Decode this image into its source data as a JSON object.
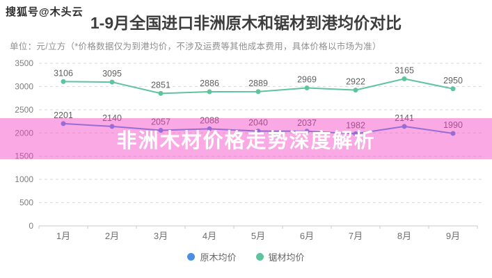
{
  "watermark": "搜狐号@木头云",
  "banner": {
    "text": "非洲木材价格走势深度解析",
    "bg_color": "#f740c4",
    "bg_opacity": 0.45,
    "text_color": "#ffffff"
  },
  "chart_data": {
    "type": "line",
    "title": "1-9月全国进口非洲原木和锯材到港均价对比",
    "subtitle": "单位：元/立方（*价格数据仅为到港均价，不涉及运费等其他成本费用，具体价格以市场为准）",
    "categories": [
      "1月",
      "2月",
      "3月",
      "4月",
      "5月",
      "6月",
      "7月",
      "8月",
      "9月"
    ],
    "series": [
      {
        "name": "原木均价",
        "color": "#4a90e2",
        "values": [
          2201,
          2140,
          2057,
          2088,
          2040,
          2037,
          1982,
          2141,
          1990
        ]
      },
      {
        "name": "锯材均价",
        "color": "#5ec49e",
        "values": [
          3106,
          3095,
          2851,
          2886,
          2889,
          2969,
          2922,
          3165,
          2950
        ]
      }
    ],
    "ylim": [
      0,
      3500
    ],
    "ytick_step": 500,
    "grid": "horizontal-dashed",
    "grid_color": "#d9d9d9",
    "axis_color": "#c8c8c8",
    "axis_label_color": "#7d7d7d",
    "data_label_color": "#5f5f5f",
    "legend_position": "bottom",
    "xlabel": "",
    "ylabel": ""
  }
}
